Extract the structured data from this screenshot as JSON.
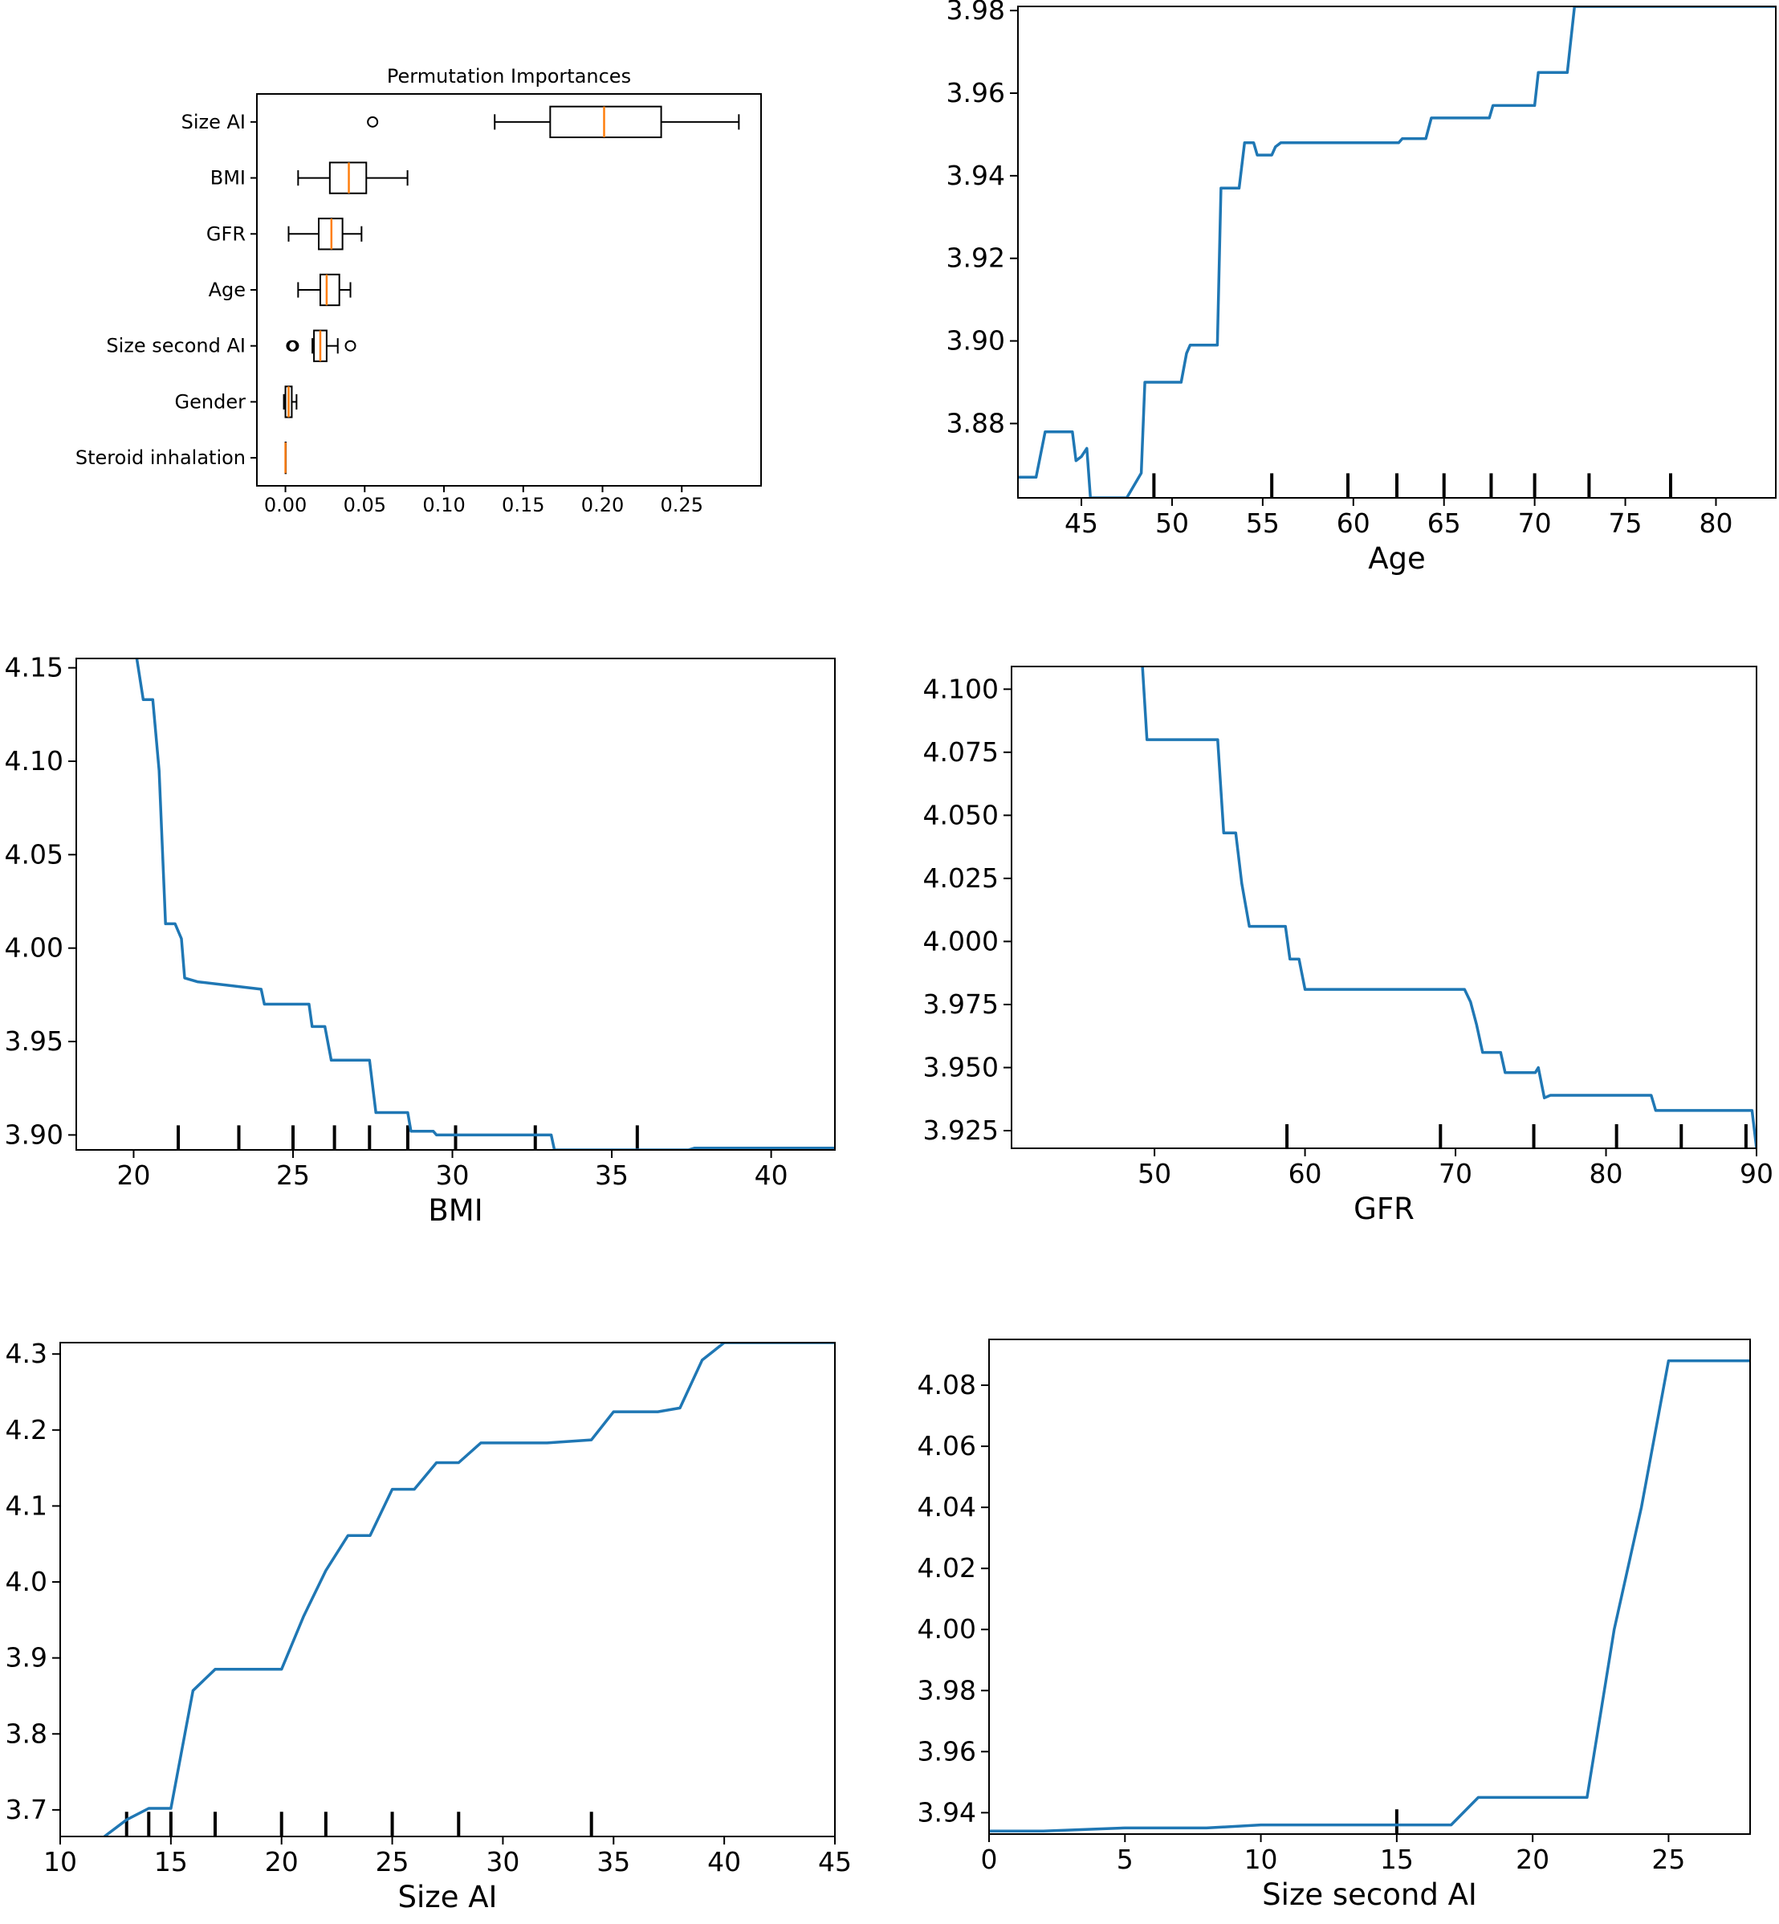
{
  "figure": {
    "line_color": "#1f77b4",
    "median_color": "#ff7f0e",
    "frame_color": "#000000"
  },
  "chart_data": [
    {
      "id": "importances",
      "type": "boxplot",
      "orientation": "horizontal",
      "title": "Permutation Importances",
      "xlabel": "",
      "ylabel": "",
      "xlim": [
        -0.018,
        0.3
      ],
      "xticks": [
        0.0,
        0.05,
        0.1,
        0.15,
        0.2,
        0.25
      ],
      "xtick_labels": [
        "0.00",
        "0.05",
        "0.10",
        "0.15",
        "0.20",
        "0.25"
      ],
      "boxes": [
        {
          "label": "Size AI",
          "whisker_low": 0.132,
          "q1": 0.167,
          "median": 0.201,
          "q3": 0.237,
          "whisker_high": 0.286,
          "outliers": [
            0.055
          ]
        },
        {
          "label": "BMI",
          "whisker_low": 0.008,
          "q1": 0.028,
          "median": 0.04,
          "q3": 0.051,
          "whisker_high": 0.077,
          "outliers": []
        },
        {
          "label": "GFR",
          "whisker_low": 0.002,
          "q1": 0.021,
          "median": 0.029,
          "q3": 0.036,
          "whisker_high": 0.048,
          "outliers": []
        },
        {
          "label": "Age",
          "whisker_low": 0.008,
          "q1": 0.022,
          "median": 0.026,
          "q3": 0.034,
          "whisker_high": 0.041,
          "outliers": []
        },
        {
          "label": "Size second AI",
          "whisker_low": 0.017,
          "q1": 0.018,
          "median": 0.022,
          "q3": 0.026,
          "whisker_high": 0.033,
          "outliers": [
            0.004,
            0.005,
            0.041
          ]
        },
        {
          "label": "Gender",
          "whisker_low": -0.001,
          "q1": 0.0,
          "median": 0.002,
          "q3": 0.004,
          "whisker_high": 0.007,
          "outliers": []
        },
        {
          "label": "Steroid inhalation",
          "whisker_low": 0.0,
          "q1": 0.0,
          "median": 0.0,
          "q3": 0.0,
          "whisker_high": 0.0,
          "outliers": []
        }
      ]
    },
    {
      "id": "pdp-age",
      "type": "line",
      "title": "",
      "xlabel": "Age",
      "ylabel": "",
      "xlim": [
        41.5,
        83.3
      ],
      "ylim": [
        3.862,
        3.981
      ],
      "xticks": [
        45,
        50,
        55,
        60,
        65,
        70,
        75,
        80
      ],
      "yticks": [
        3.88,
        3.9,
        3.92,
        3.94,
        3.96,
        3.98
      ],
      "ytick_labels": [
        "3.88",
        "3.90",
        "3.92",
        "3.94",
        "3.96",
        "3.98"
      ],
      "rug": [
        49.0,
        55.5,
        59.7,
        62.4,
        65.0,
        67.6,
        70.0,
        73.0,
        77.5
      ],
      "x": [
        41.5,
        42.5,
        43,
        44.5,
        44.7,
        45,
        45.3,
        45.5,
        47.5,
        48.3,
        48.5,
        50.5,
        50.8,
        51,
        52.5,
        52.7,
        53.7,
        54,
        54.5,
        54.7,
        55.5,
        55.7,
        56,
        62.5,
        62.7,
        64,
        64.3,
        67.5,
        67.7,
        70,
        70.2,
        71.8,
        72.2,
        83.3
      ],
      "y": [
        3.867,
        3.867,
        3.878,
        3.878,
        3.871,
        3.872,
        3.874,
        3.862,
        3.862,
        3.868,
        3.89,
        3.89,
        3.897,
        3.899,
        3.899,
        3.937,
        3.937,
        3.948,
        3.948,
        3.945,
        3.945,
        3.947,
        3.948,
        3.948,
        3.949,
        3.949,
        3.954,
        3.954,
        3.957,
        3.957,
        3.965,
        3.965,
        3.981,
        3.981
      ]
    },
    {
      "id": "pdp-bmi",
      "type": "line",
      "title": "",
      "xlabel": "BMI",
      "ylabel": "",
      "xlim": [
        18.2,
        42
      ],
      "ylim": [
        3.892,
        4.155
      ],
      "xticks": [
        20,
        25,
        30,
        35,
        40
      ],
      "yticks": [
        3.9,
        3.95,
        4.0,
        4.05,
        4.1,
        4.15
      ],
      "ytick_labels": [
        "3.90",
        "3.95",
        "4.00",
        "4.05",
        "4.10",
        "4.15"
      ],
      "rug": [
        21.4,
        23.3,
        25.0,
        26.3,
        27.4,
        28.6,
        30.1,
        32.6,
        35.8
      ],
      "x": [
        20.1,
        20.3,
        20.6,
        20.8,
        21.0,
        21.1,
        21.3,
        21.5,
        21.6,
        22.0,
        24.0,
        24.1,
        25.5,
        25.6,
        26.0,
        26.2,
        27.4,
        27.6,
        28.6,
        28.7,
        29.4,
        29.5,
        32.4,
        33.1,
        33.2,
        37.4,
        37.6,
        42.0
      ],
      "y": [
        4.155,
        4.133,
        4.133,
        4.095,
        4.013,
        4.013,
        4.013,
        4.005,
        3.984,
        3.982,
        3.978,
        3.97,
        3.97,
        3.958,
        3.958,
        3.94,
        3.94,
        3.912,
        3.912,
        3.902,
        3.902,
        3.9,
        3.9,
        3.9,
        3.892,
        3.892,
        3.893,
        3.893
      ]
    },
    {
      "id": "pdp-gfr",
      "type": "line",
      "title": "",
      "xlabel": "GFR",
      "ylabel": "",
      "xlim": [
        40.5,
        90
      ],
      "ylim": [
        3.918,
        4.109
      ],
      "xticks": [
        50,
        60,
        70,
        80,
        90
      ],
      "yticks": [
        3.925,
        3.95,
        3.975,
        4.0,
        4.025,
        4.05,
        4.075,
        4.1
      ],
      "ytick_labels": [
        "3.925",
        "3.950",
        "3.975",
        "4.000",
        "4.025",
        "4.050",
        "4.075",
        "4.100"
      ],
      "rug": [
        58.8,
        69.0,
        75.2,
        80.7,
        85.0,
        89.3
      ],
      "x": [
        49.2,
        49.5,
        54.2,
        54.6,
        55.4,
        55.8,
        56.3,
        58.7,
        59.0,
        59.6,
        60.0,
        70.6,
        71.0,
        71.4,
        71.8,
        73.0,
        73.3,
        75.3,
        75.5,
        75.9,
        76.3,
        83.0,
        83.3,
        89.7,
        90.0
      ],
      "y": [
        4.109,
        4.08,
        4.08,
        4.043,
        4.043,
        4.023,
        4.006,
        4.006,
        3.993,
        3.993,
        3.981,
        3.981,
        3.976,
        3.967,
        3.956,
        3.956,
        3.948,
        3.948,
        3.95,
        3.938,
        3.939,
        3.939,
        3.933,
        3.933,
        3.918
      ]
    },
    {
      "id": "pdp-size-ai",
      "type": "line",
      "title": "",
      "xlabel": "Size AI",
      "ylabel": "",
      "xlim": [
        10,
        45
      ],
      "ylim": [
        3.665,
        4.315
      ],
      "xticks": [
        10,
        15,
        20,
        25,
        30,
        35,
        40,
        45
      ],
      "yticks": [
        3.7,
        3.8,
        3.9,
        4.0,
        4.1,
        4.2,
        4.3
      ],
      "ytick_labels": [
        "3.7",
        "3.8",
        "3.9",
        "4.0",
        "4.1",
        "4.2",
        "4.3"
      ],
      "rug": [
        13,
        14,
        15,
        17,
        20,
        22,
        25,
        28,
        34
      ],
      "x": [
        12,
        13,
        14,
        15,
        16,
        17,
        18,
        19,
        20,
        21,
        22,
        23,
        24,
        25,
        26,
        27,
        28,
        29,
        30,
        31,
        32,
        33,
        34,
        35,
        36,
        37,
        38,
        39,
        40,
        41,
        45
      ],
      "y": [
        3.665,
        3.687,
        3.702,
        3.702,
        3.857,
        3.885,
        3.885,
        3.885,
        3.885,
        3.955,
        4.015,
        4.061,
        4.061,
        4.122,
        4.122,
        4.157,
        4.157,
        4.183,
        4.183,
        4.183,
        4.183,
        4.185,
        4.187,
        4.224,
        4.224,
        4.224,
        4.229,
        4.292,
        4.315,
        4.315,
        4.315
      ]
    },
    {
      "id": "pdp-size-second-ai",
      "type": "line",
      "title": "",
      "xlabel": "Size second AI",
      "ylabel": "",
      "xlim": [
        0,
        28
      ],
      "ylim": [
        3.933,
        4.095
      ],
      "xticks": [
        0,
        5,
        10,
        15,
        20,
        25
      ],
      "yticks": [
        3.94,
        3.96,
        3.98,
        4.0,
        4.02,
        4.04,
        4.06,
        4.08
      ],
      "ytick_labels": [
        "3.94",
        "3.96",
        "3.98",
        "4.00",
        "4.02",
        "4.04",
        "4.06",
        "4.08"
      ],
      "rug": [
        15
      ],
      "x": [
        0,
        2,
        5,
        8,
        10,
        15,
        17,
        18,
        20,
        21,
        22,
        23,
        24,
        25,
        28
      ],
      "y": [
        3.934,
        3.934,
        3.935,
        3.935,
        3.936,
        3.936,
        3.936,
        3.945,
        3.945,
        3.945,
        3.945,
        4.0,
        4.04,
        4.088,
        4.088
      ]
    }
  ]
}
